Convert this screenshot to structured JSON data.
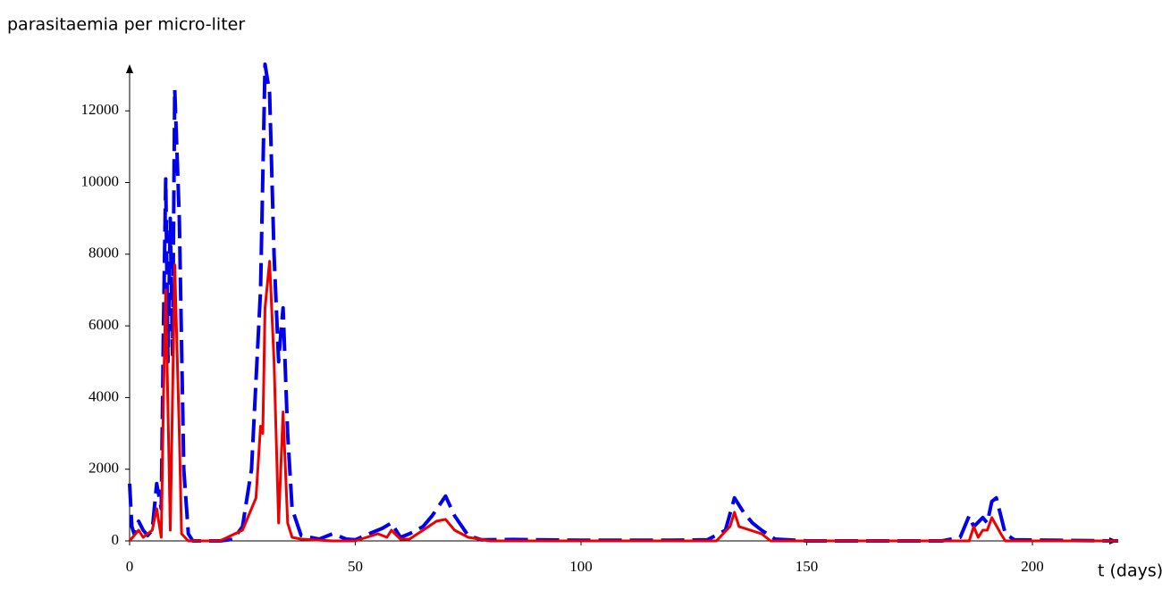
{
  "chart_data": {
    "type": "line",
    "ylabel": "parasitaemia per micro-liter",
    "xlabel": "t (days)",
    "xlim": [
      0,
      219
    ],
    "ylim": [
      0,
      13300
    ],
    "xticks": [
      0,
      50,
      100,
      150,
      200
    ],
    "yticks": [
      0,
      2000,
      4000,
      6000,
      8000,
      10000,
      12000
    ],
    "series": [
      {
        "color": "#0000ee",
        "dash": true,
        "x": [
          0,
          0.5,
          1,
          2,
          3,
          4,
          5,
          6,
          7,
          7.5,
          8,
          8.5,
          9,
          9.5,
          10,
          11,
          12,
          13,
          14,
          20,
          23,
          25,
          27,
          29,
          30,
          31,
          32,
          33,
          33.5,
          34,
          35,
          36,
          38,
          42,
          45,
          48,
          50,
          53,
          56,
          58,
          60,
          62,
          65,
          67,
          70,
          72,
          75,
          78,
          85,
          90,
          100,
          110,
          120,
          128,
          132,
          134,
          136,
          138,
          140,
          143,
          150,
          180,
          184,
          186,
          187,
          189,
          190,
          191,
          192,
          193,
          194,
          196,
          219
        ],
        "values": [
          1600,
          400,
          200,
          550,
          300,
          150,
          300,
          1600,
          900,
          6000,
          10100,
          5000,
          9000,
          5200,
          12600,
          9000,
          2000,
          200,
          0,
          0,
          50,
          400,
          2000,
          7000,
          13300,
          12500,
          8000,
          5000,
          5800,
          6500,
          3000,
          900,
          150,
          50,
          200,
          50,
          30,
          200,
          350,
          500,
          100,
          200,
          400,
          700,
          1250,
          700,
          150,
          30,
          40,
          30,
          20,
          20,
          20,
          30,
          300,
          1200,
          800,
          500,
          300,
          50,
          0,
          0,
          100,
          700,
          400,
          650,
          500,
          1100,
          1200,
          700,
          200,
          30,
          0
        ]
      },
      {
        "color": "#ee0000",
        "dash": false,
        "x": [
          0,
          2,
          3,
          5,
          6,
          7,
          7.5,
          8,
          9,
          10,
          11,
          11.5,
          13,
          20,
          25,
          28,
          29,
          29.5,
          30,
          31,
          32,
          33,
          34,
          35,
          36,
          38,
          45,
          50,
          55,
          57,
          58,
          60,
          62,
          65,
          68,
          70,
          72,
          75,
          80,
          130,
          133,
          134,
          135,
          140,
          142,
          186,
          187,
          188,
          189,
          190,
          191,
          193,
          194,
          219
        ],
        "values": [
          0,
          300,
          100,
          300,
          900,
          100,
          4000,
          7000,
          300,
          7700,
          3000,
          200,
          0,
          0,
          300,
          1200,
          3200,
          3000,
          6500,
          7800,
          5000,
          500,
          3600,
          500,
          100,
          50,
          0,
          0,
          200,
          100,
          300,
          50,
          50,
          300,
          550,
          600,
          300,
          100,
          0,
          0,
          400,
          800,
          400,
          200,
          0,
          0,
          400,
          100,
          300,
          300,
          650,
          200,
          0,
          0
        ]
      }
    ]
  }
}
